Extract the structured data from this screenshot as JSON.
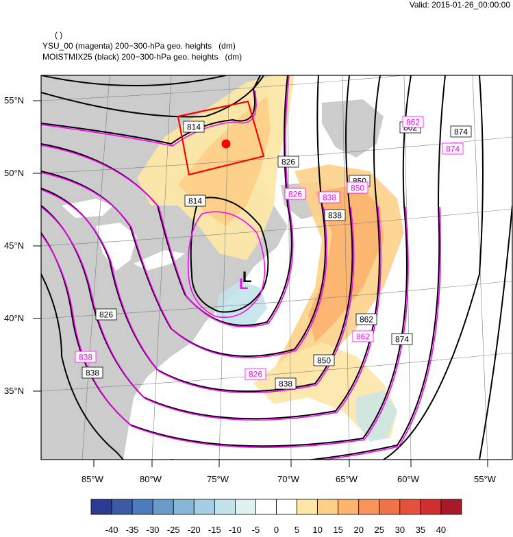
{
  "valid_time": "Valid: 2015-01-26_00:00:00",
  "header": {
    "blank_line": "( )",
    "line1": "YSU_00 (magenta) 200−300-hPa geo. heights   (dm)",
    "line2": "MOISTMIX25 (black) 200−300-hPa geo. heights   (dm)"
  },
  "lat_labels": [
    "55°N",
    "50°N",
    "45°N",
    "40°N",
    "35°N"
  ],
  "lon_labels": [
    "85°W",
    "80°W",
    "75°W",
    "70°W",
    "65°W",
    "60°W",
    "55°W"
  ],
  "contour_labels_black": [
    "814",
    "814",
    "826",
    "826",
    "838",
    "838",
    "838",
    "850",
    "850",
    "862",
    "862",
    "874",
    "874"
  ],
  "contour_labels_magenta": [
    "826",
    "826",
    "838",
    "838",
    "850",
    "862",
    "862",
    "874"
  ],
  "low_markers": {
    "black": "L",
    "magenta": "L"
  },
  "colorbar": {
    "labels": [
      "-40",
      "-35",
      "-30",
      "-25",
      "-20",
      "-15",
      "-10",
      "-5",
      "0",
      "5",
      "10",
      "15",
      "20",
      "25",
      "30",
      "35",
      "40"
    ],
    "colors": [
      "#2b3a93",
      "#3b5ba7",
      "#4d7cbc",
      "#6a9ccb",
      "#86b6d8",
      "#a4cfe2",
      "#c3e3ea",
      "#e0f2ef",
      "#ffffff",
      "#ffffff",
      "#fde7a6",
      "#fdd088",
      "#fbb46e",
      "#f7955a",
      "#ef7349",
      "#e3513c",
      "#cf2f31",
      "#a81929"
    ]
  }
}
